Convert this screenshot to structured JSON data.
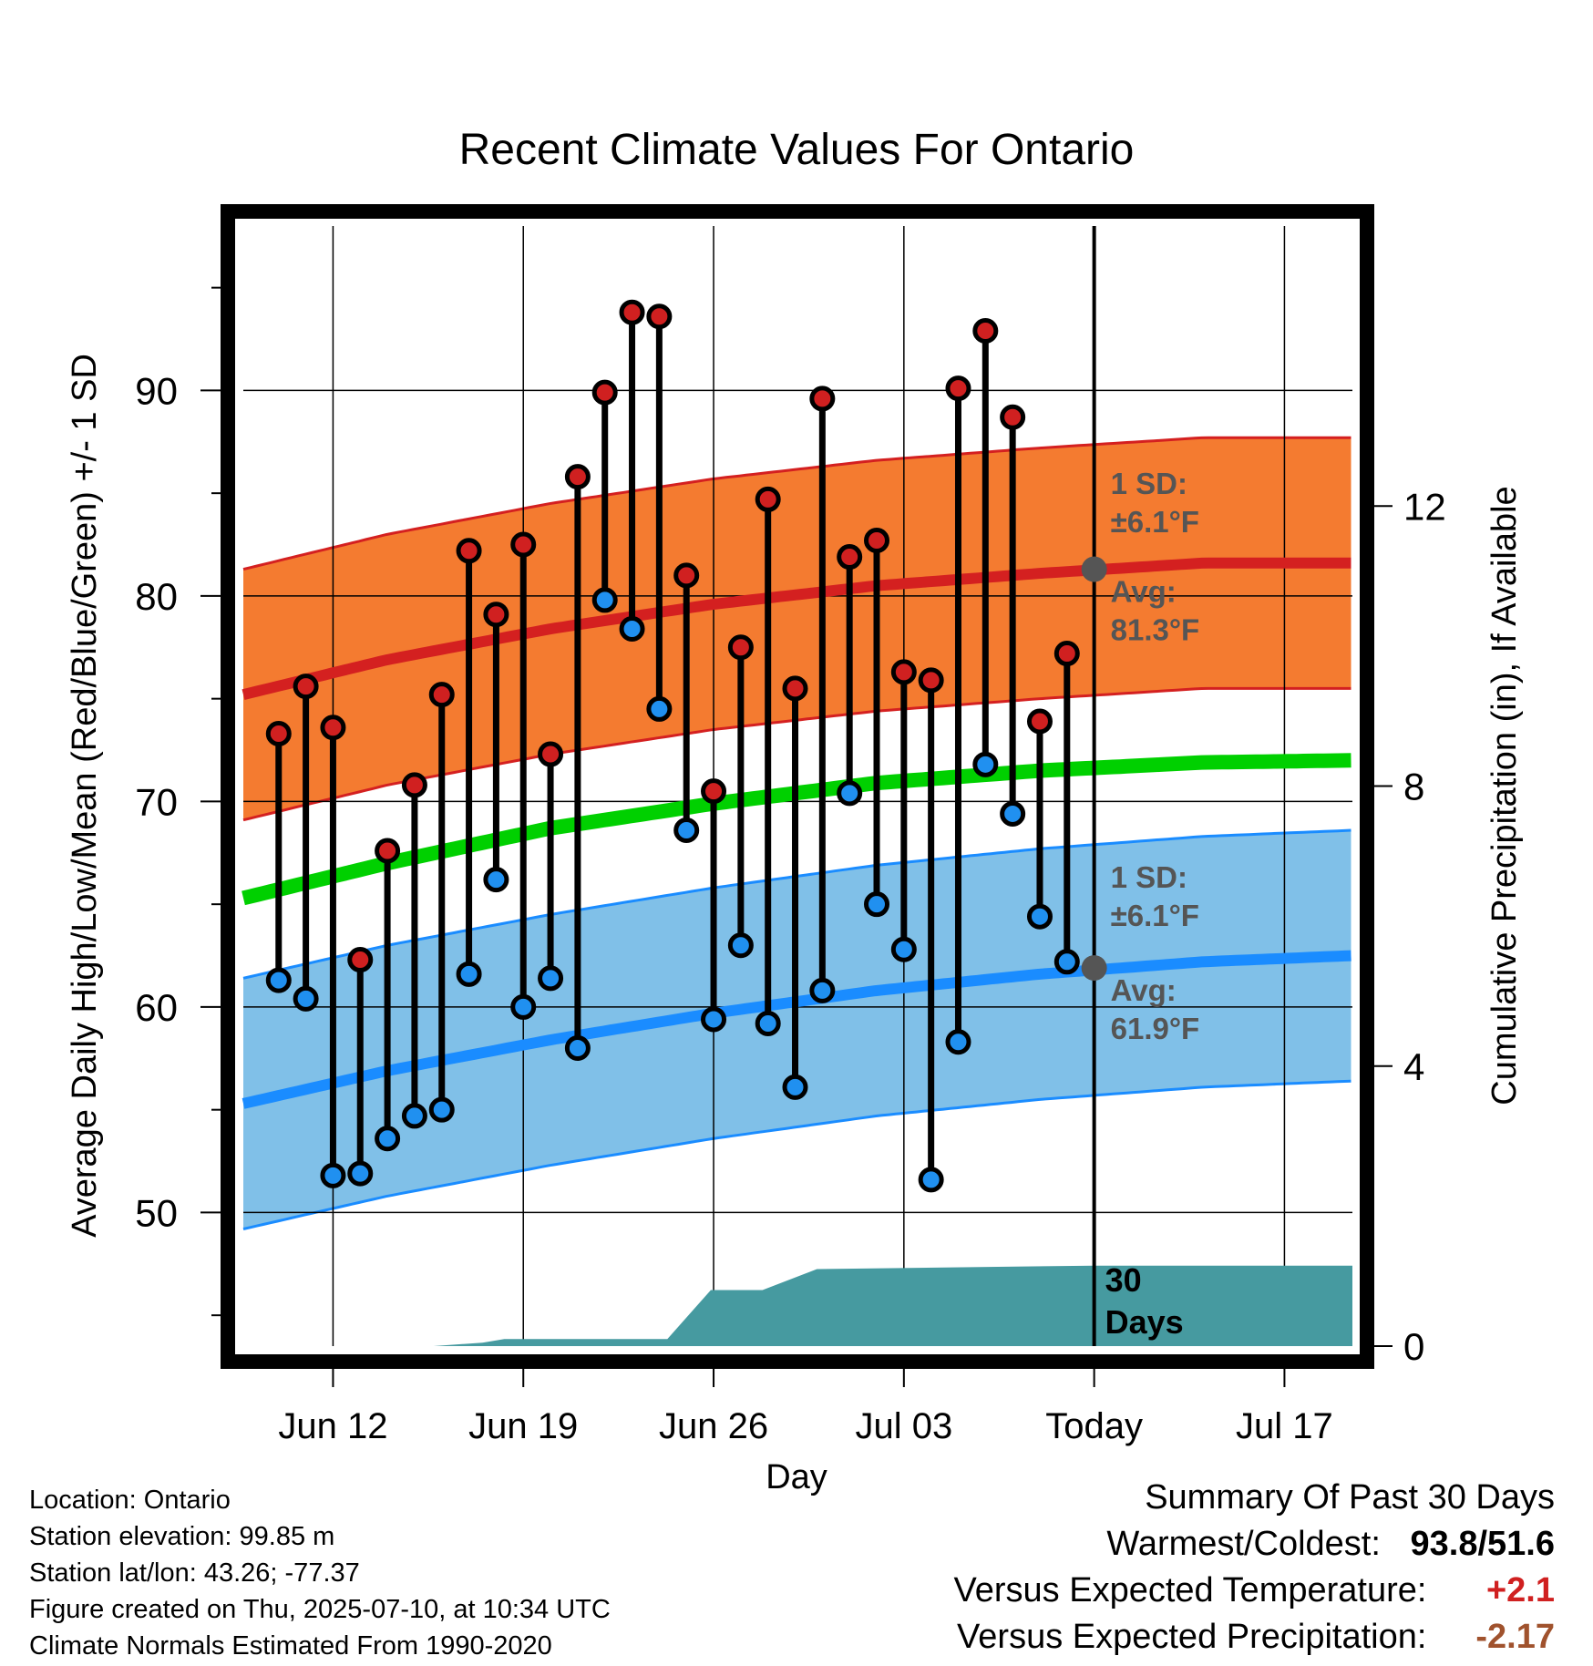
{
  "chart_data": {
    "type": "line",
    "title": "Recent Climate Values For Ontario",
    "xlabel": "Day",
    "ylabel": "Average Daily High/Low/Mean (Red/Blue/Green) +/- 1 SD",
    "y2label": "Cumulative Precipitation (in), If Available",
    "ylim": [
      43.5,
      98
    ],
    "y2lim": [
      0,
      16
    ],
    "yticks": [
      "50",
      "60",
      "70",
      "80",
      "90"
    ],
    "y2ticks": [
      "0",
      "4",
      "8",
      "12"
    ],
    "xticks": [
      "Jun 12",
      "Jun 19",
      "Jun 26",
      "Jul 03",
      "Today",
      "Jul 17"
    ],
    "xtick_days": [
      12,
      19,
      26,
      33,
      40,
      47
    ],
    "xlim": [
      8.7,
      49.5
    ],
    "today_day": 40,
    "today_label": "30\nDays",
    "grid": true,
    "days": [
      10,
      11,
      12,
      13,
      14,
      15,
      16,
      17,
      18,
      19,
      20,
      21,
      22,
      23,
      24,
      25,
      26,
      27,
      28,
      29,
      30,
      31,
      32,
      33,
      34,
      35,
      36,
      37,
      38,
      39
    ],
    "highs": [
      73.3,
      75.6,
      73.6,
      62.3,
      67.6,
      70.8,
      75.2,
      82.2,
      79.1,
      82.5,
      72.3,
      85.8,
      89.9,
      93.8,
      93.6,
      81.0,
      70.5,
      77.5,
      84.7,
      75.5,
      89.6,
      81.9,
      82.7,
      76.3,
      75.9,
      90.1,
      92.9,
      88.7,
      73.9,
      77.2
    ],
    "lows": [
      61.3,
      60.4,
      51.8,
      51.9,
      53.6,
      54.7,
      55.0,
      61.6,
      66.2,
      60.0,
      61.4,
      58.0,
      79.8,
      78.4,
      74.5,
      68.6,
      59.4,
      63.0,
      59.2,
      56.1,
      60.8,
      70.4,
      65.0,
      62.8,
      51.6,
      58.3,
      71.8,
      69.4,
      64.4,
      62.2
    ],
    "normal_high_days": [
      8.7,
      14,
      20,
      26,
      32,
      38,
      44,
      49.5
    ],
    "normal_high": [
      75.2,
      76.9,
      78.4,
      79.6,
      80.5,
      81.1,
      81.6,
      81.6
    ],
    "normal_low": [
      55.3,
      56.9,
      58.4,
      59.7,
      60.8,
      61.6,
      62.2,
      62.5
    ],
    "normal_mean": [
      65.3,
      67.0,
      68.7,
      69.9,
      70.9,
      71.5,
      71.9,
      72.0
    ],
    "sd": 6.1,
    "band_high_annotation": {
      "sd_label": "1 SD:",
      "sd_value": "±6.1°F",
      "avg_label": "Avg:",
      "avg_value": "81.3°F",
      "avg": 81.3
    },
    "band_low_annotation": {
      "sd_label": "1 SD:",
      "sd_value": "±6.1°F",
      "avg_label": "Avg:",
      "avg_value": "61.9°F",
      "avg": 61.9
    },
    "precip_steps": [
      [
        8.7,
        0
      ],
      [
        15,
        0
      ],
      [
        15.7,
        0
      ],
      [
        17.5,
        0.05
      ],
      [
        18.3,
        0.1
      ],
      [
        24.3,
        0.1
      ],
      [
        25.9,
        0.8
      ],
      [
        27.8,
        0.8
      ],
      [
        29.8,
        1.1
      ],
      [
        40,
        1.15
      ],
      [
        49.5,
        1.15
      ]
    ],
    "colors": {
      "high_dot": "#d02020",
      "low_dot": "#2090f0",
      "high_band": "#f47b30",
      "high_line": "#d42020",
      "low_band": "#80c0e8",
      "low_line": "#1a8cff",
      "mean_line": "#00d000",
      "precip": "#469aa0",
      "annotation": "#555555",
      "today_marker": "#555555"
    }
  },
  "info": {
    "location": "Location: Ontario",
    "elevation": "Station elevation: 99.85 m",
    "latlon": "Station lat/lon: 43.26; -77.37",
    "created": "Figure created on Thu, 2025-07-10, at 10:34 UTC",
    "normals": "Climate Normals Estimated From 1990-2020"
  },
  "summary": {
    "title": "Summary Of Past 30 Days",
    "warm_cold_label": "Warmest/Coldest:",
    "warm_value": "93.8",
    "cold_value": "51.6",
    "temp_label": "Versus Expected Temperature:",
    "temp_value": "+2.1",
    "temp_color": "#d02020",
    "precip_label": "Versus Expected Precipitation:",
    "precip_value": "-2.17",
    "precip_color": "#a0522d"
  }
}
